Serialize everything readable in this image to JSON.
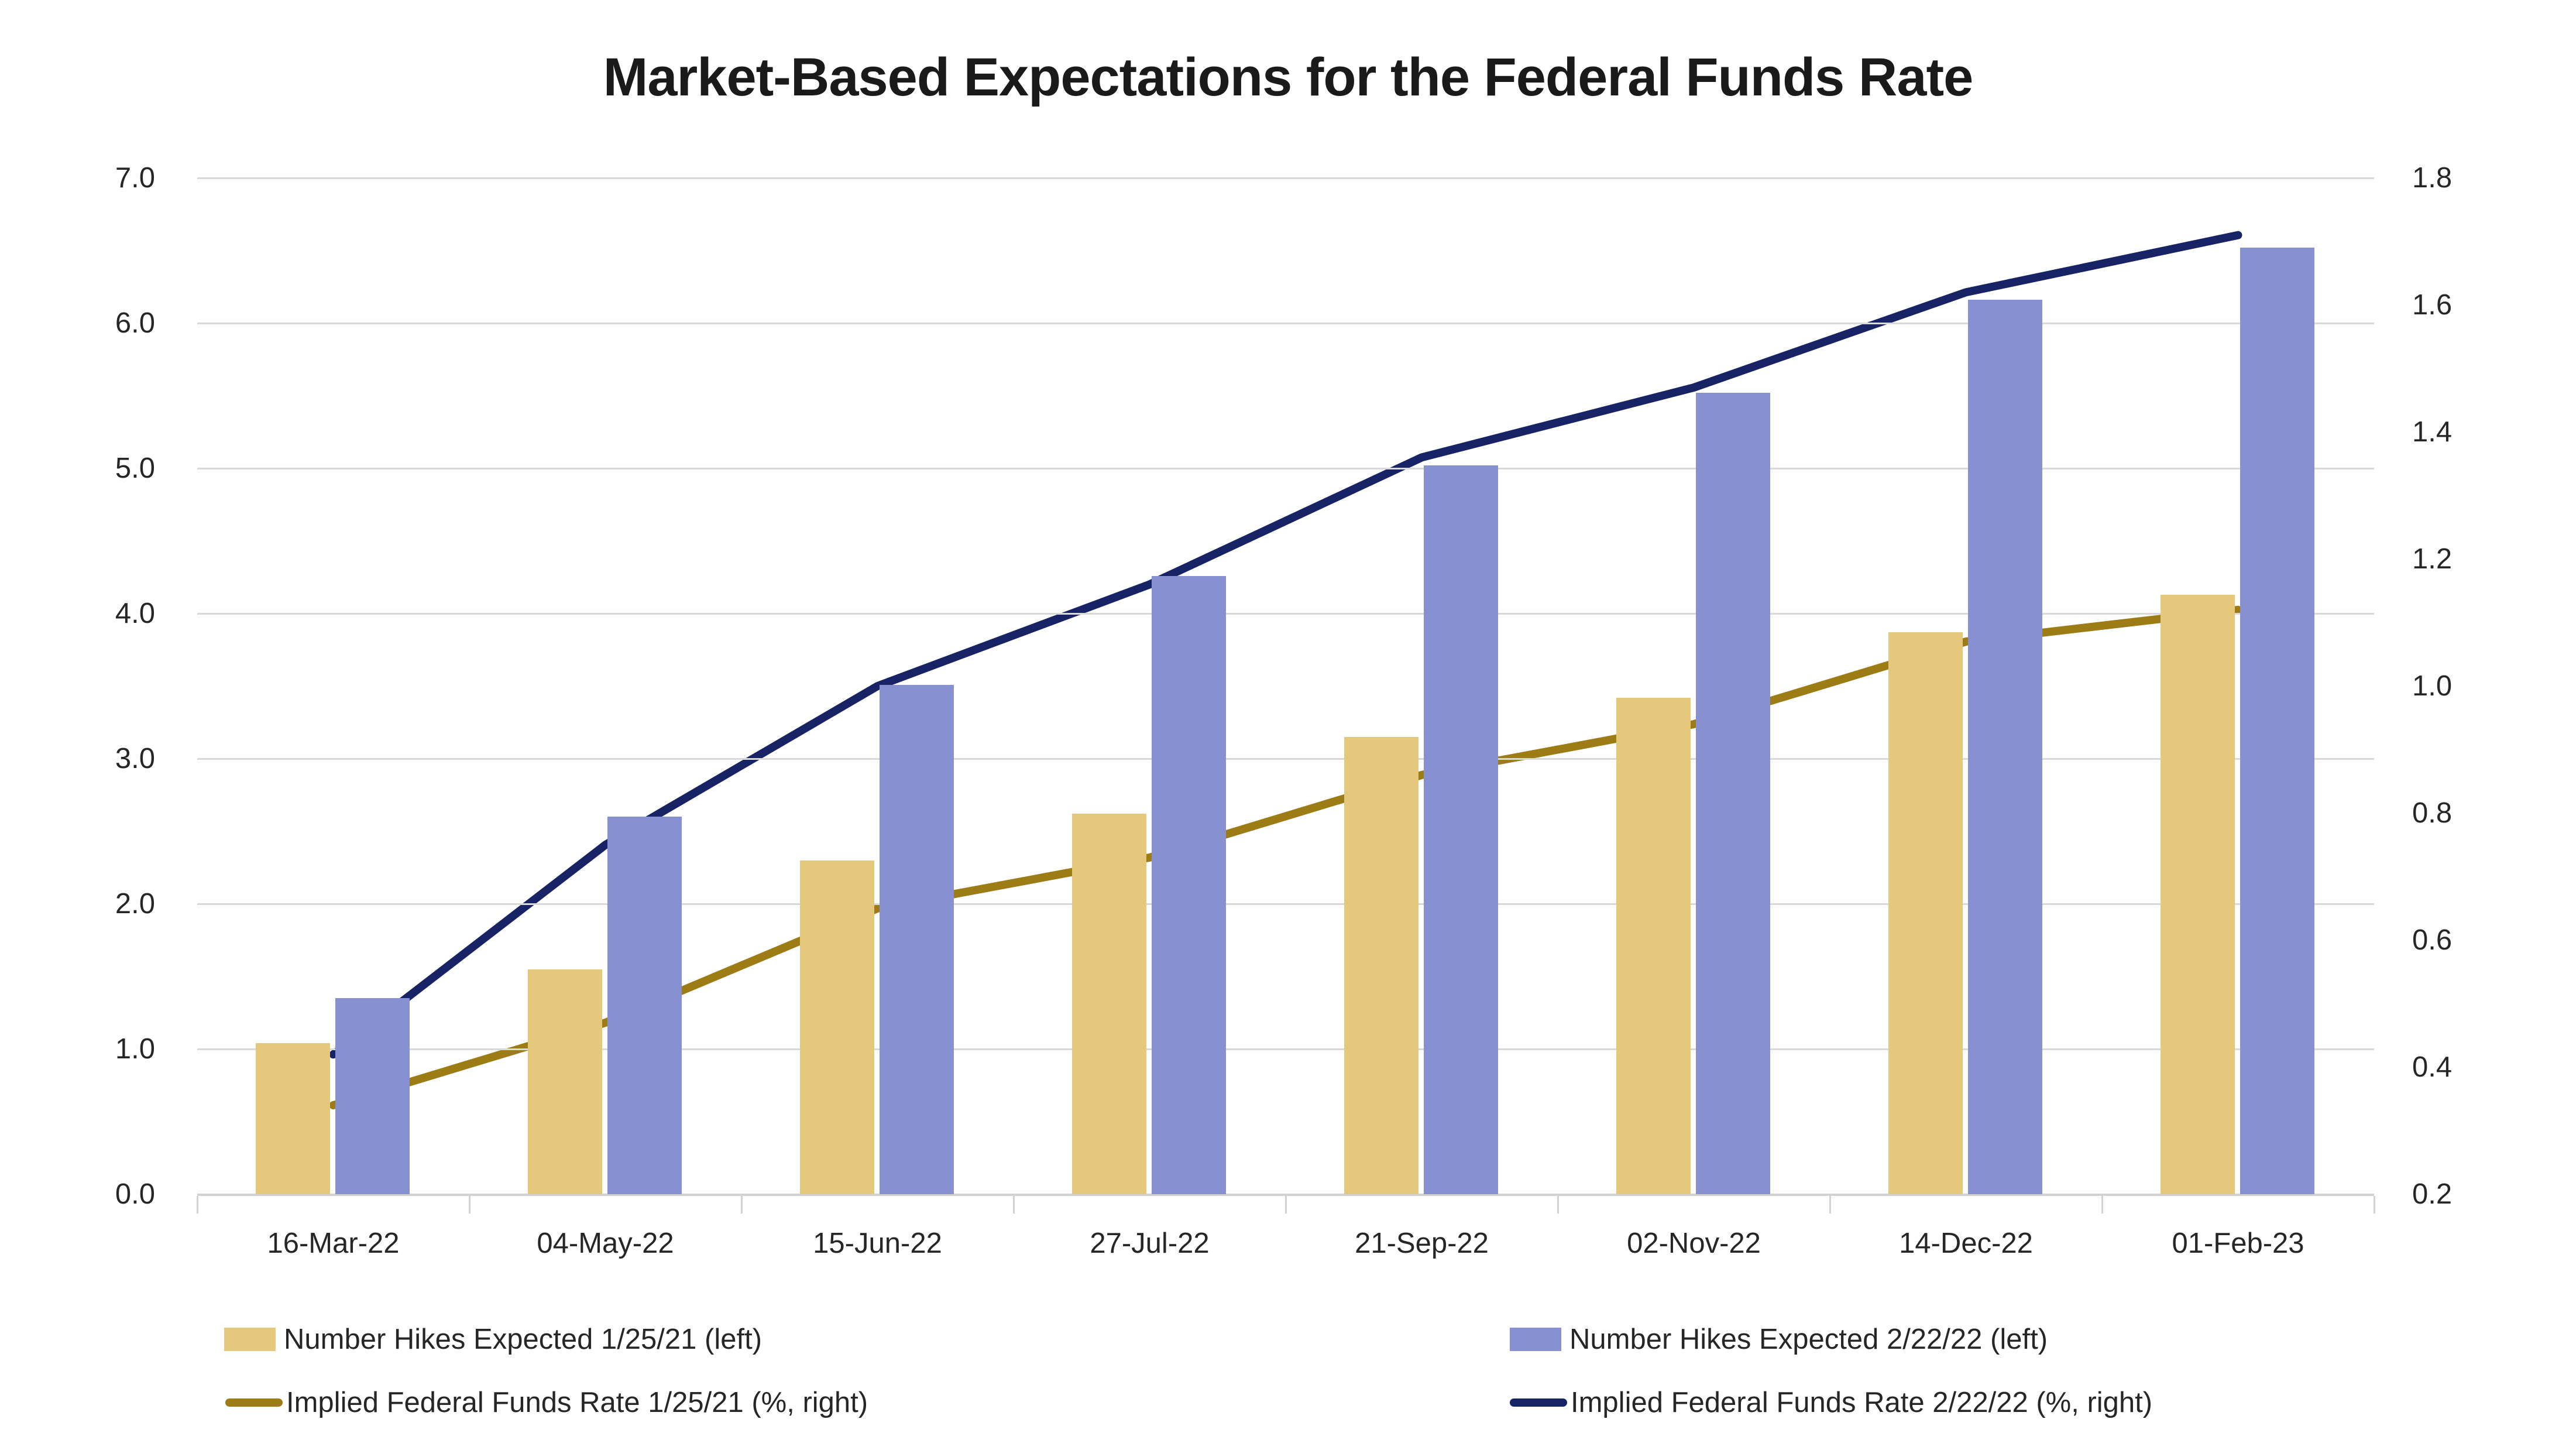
{
  "title": "Market-Based Expectations for the Federal Funds Rate",
  "chart_data": {
    "type": "bar+line combo",
    "categories": [
      "16-Mar-22",
      "04-May-22",
      "15-Jun-22",
      "27-Jul-22",
      "21-Sep-22",
      "02-Nov-22",
      "14-Dec-22",
      "01-Feb-23"
    ],
    "left_axis": {
      "min": 0.0,
      "max": 7.0,
      "tick_step": 1.0,
      "tick_labels": [
        "0.0",
        "1.0",
        "2.0",
        "3.0",
        "4.0",
        "5.0",
        "6.0",
        "7.0"
      ]
    },
    "right_axis": {
      "min": 0.2,
      "max": 1.8,
      "tick_step": 0.2,
      "tick_labels": [
        "0.2",
        "0.4",
        "0.6",
        "0.8",
        "1.0",
        "1.2",
        "1.4",
        "1.6",
        "1.8"
      ]
    },
    "grid": true,
    "legend_position": "bottom",
    "series": [
      {
        "name": "Number Hikes Expected 1/25/21 (left)",
        "type": "bar",
        "axis": "left",
        "color": "#e6c87d",
        "values": [
          1.04,
          1.55,
          2.3,
          2.62,
          3.15,
          3.42,
          3.87,
          4.13
        ]
      },
      {
        "name": "Number Hikes Expected 2/22/22 (left)",
        "type": "bar",
        "axis": "left",
        "color": "#8791d1",
        "values": [
          1.35,
          2.6,
          3.51,
          4.26,
          5.02,
          5.52,
          6.16,
          6.52
        ]
      },
      {
        "name": "Implied Federal Funds Rate 1/25/21 (%, right)",
        "type": "line",
        "axis": "right",
        "color": "#9d7c15",
        "values": [
          0.34,
          0.47,
          0.65,
          0.73,
          0.86,
          0.94,
          1.07,
          1.12
        ]
      },
      {
        "name": "Implied Federal Funds Rate 2/22/22 (%, right)",
        "type": "line",
        "axis": "right",
        "color": "#182366",
        "values": [
          0.42,
          0.75,
          1.0,
          1.16,
          1.36,
          1.47,
          1.62,
          1.71
        ]
      }
    ]
  },
  "colors": {
    "background": "#ffffff",
    "gridline": "#d9d9d9",
    "axis_line": "#d2d2d2",
    "label_text": "#262626",
    "title_text": "#1a1a1a"
  }
}
